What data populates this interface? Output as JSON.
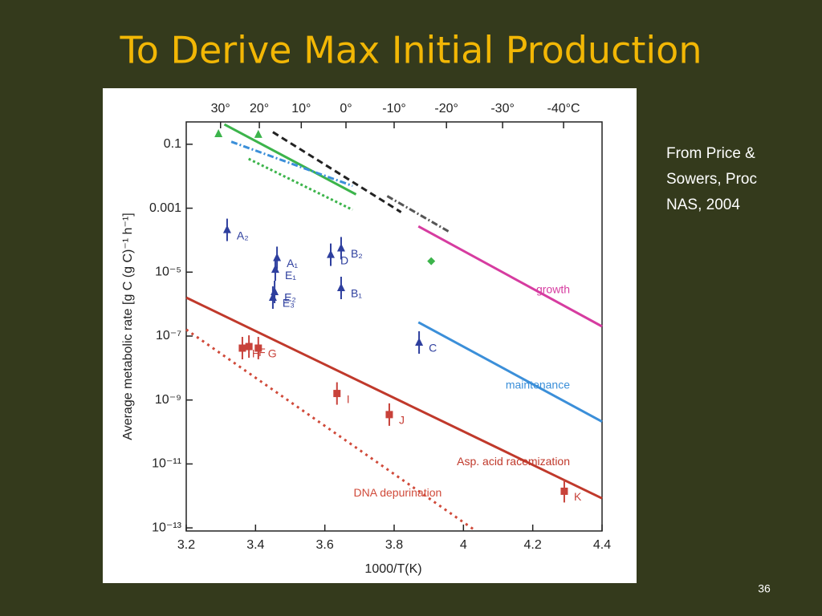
{
  "title": "To Derive Max Initial Production",
  "note": [
    "From Price &",
    "Sowers, Proc",
    "NAS, 2004"
  ],
  "slide_number": "36",
  "chart_data": {
    "type": "scatter",
    "xlabel": "1000/T(K)",
    "ylabel": "Average metabolic rate [g C (g C)⁻¹ h⁻¹]",
    "xlim": [
      3.2,
      4.4
    ],
    "xticks": [
      3.2,
      3.4,
      3.6,
      3.8,
      4,
      4.2,
      4.4
    ],
    "x2ticks": [
      {
        "value": 3.299,
        "label": "30°"
      },
      {
        "value": 3.411,
        "label": "20°"
      },
      {
        "value": 3.532,
        "label": "10°"
      },
      {
        "value": 3.661,
        "label": "0°"
      },
      {
        "value": 3.8,
        "label": "-10°"
      },
      {
        "value": 3.951,
        "label": "-20°"
      },
      {
        "value": 4.113,
        "label": "-30°"
      },
      {
        "value": 4.289,
        "label": "-40°C"
      }
    ],
    "log_y": true,
    "ylim": [
      8e-14,
      0.5
    ],
    "yticks": [
      {
        "value": 0.1,
        "label": "0.1"
      },
      {
        "value": 0.001,
        "label": "0.001"
      },
      {
        "value": 1e-05,
        "label": "10⁻⁵"
      },
      {
        "value": 1e-07,
        "label": "10⁻⁷"
      },
      {
        "value": 1e-09,
        "label": "10⁻⁹"
      },
      {
        "value": 1e-11,
        "label": "10⁻¹¹"
      },
      {
        "value": 1e-13,
        "label": "10⁻¹³"
      }
    ],
    "series": [
      {
        "name": "growth",
        "color": "#d63ca0",
        "dash": "none",
        "x": [
          3.87,
          4.4
        ],
        "values": [
          0.00027,
          2e-07
        ]
      },
      {
        "name": "maintenance",
        "color": "#3b8fd9",
        "dash": "none",
        "x": [
          3.87,
          4.4
        ],
        "values": [
          2.7e-07,
          2.1e-10
        ]
      },
      {
        "name": "Asp. acid racemization",
        "color": "#c0392b",
        "dash": "none",
        "x": [
          3.2,
          4.4
        ],
        "values": [
          1.6e-06,
          8.4e-13
        ]
      },
      {
        "name": "DNA depurination",
        "color": "#d04a3a",
        "dash": "3 5",
        "x": [
          3.2,
          4.03
        ],
        "values": [
          1.6e-07,
          8.9e-14
        ]
      }
    ],
    "trends": [
      {
        "color": "#3cb44b",
        "dash": "none",
        "x": [
          3.31,
          3.69
        ],
        "values": [
          0.42,
          0.0027
        ]
      },
      {
        "color": "#3cb44b",
        "dash": "3 3",
        "x": [
          3.38,
          3.68
        ],
        "values": [
          0.035,
          0.00089
        ]
      },
      {
        "color": "#3b8fd9",
        "dash": "8 3 2 3",
        "x": [
          3.33,
          3.68
        ],
        "values": [
          0.12,
          0.005
        ]
      },
      {
        "color": "#222222",
        "dash": "8 5",
        "x": [
          3.45,
          3.82
        ],
        "values": [
          0.24,
          0.00075
        ]
      },
      {
        "color": "#555555",
        "dash": "8 3 2 3",
        "x": [
          3.78,
          3.96
        ],
        "values": [
          0.0024,
          0.00018
        ]
      }
    ],
    "points": [
      {
        "label": "A₂",
        "x": 3.318,
        "y": 0.00021,
        "color": "#2e3f9e",
        "marker": "triangle"
      },
      {
        "label": "A₁",
        "x": 3.462,
        "y": 2.8e-05,
        "color": "#2e3f9e",
        "marker": "triangle"
      },
      {
        "label": "E₁",
        "x": 3.457,
        "y": 1.2e-05,
        "color": "#2e3f9e",
        "marker": "triangle"
      },
      {
        "label": "E₂",
        "x": 3.455,
        "y": 2.4e-06,
        "color": "#2e3f9e",
        "marker": "triangle"
      },
      {
        "label": "E₃",
        "x": 3.45,
        "y": 1.6e-06,
        "color": "#2e3f9e",
        "marker": "triangle"
      },
      {
        "label": "D",
        "x": 3.617,
        "y": 3.5e-05,
        "color": "#2e3f9e",
        "marker": "triangle"
      },
      {
        "label": "B₂",
        "x": 3.647,
        "y": 5.6e-05,
        "color": "#2e3f9e",
        "marker": "triangle"
      },
      {
        "label": "B₁",
        "x": 3.647,
        "y": 3.2e-06,
        "color": "#2e3f9e",
        "marker": "triangle"
      },
      {
        "label": "C",
        "x": 3.872,
        "y": 6.3e-08,
        "color": "#2e3f9e",
        "marker": "triangle"
      },
      {
        "label": "H",
        "x": 3.362,
        "y": 4.2e-08,
        "color": "#c8423a",
        "marker": "square"
      },
      {
        "label": "F",
        "x": 3.381,
        "y": 4.7e-08,
        "color": "#c8423a",
        "marker": "square"
      },
      {
        "label": "G",
        "x": 3.408,
        "y": 4.2e-08,
        "color": "#c8423a",
        "marker": "square"
      },
      {
        "label": "I",
        "x": 3.635,
        "y": 1.6e-09,
        "color": "#c8423a",
        "marker": "square"
      },
      {
        "label": "J",
        "x": 3.786,
        "y": 3.5e-10,
        "color": "#c8423a",
        "marker": "square"
      },
      {
        "label": "K",
        "x": 4.291,
        "y": 1.4e-12,
        "color": "#c8423a",
        "marker": "square"
      }
    ],
    "extra_points": [
      {
        "x": 3.293,
        "y": 0.21,
        "color": "#3cb44b",
        "marker": "triangle"
      },
      {
        "x": 3.408,
        "y": 0.2,
        "color": "#3cb44b",
        "marker": "triangle"
      },
      {
        "x": 3.907,
        "y": 2.2e-05,
        "color": "#3cb44b",
        "marker": "diamond"
      }
    ]
  }
}
